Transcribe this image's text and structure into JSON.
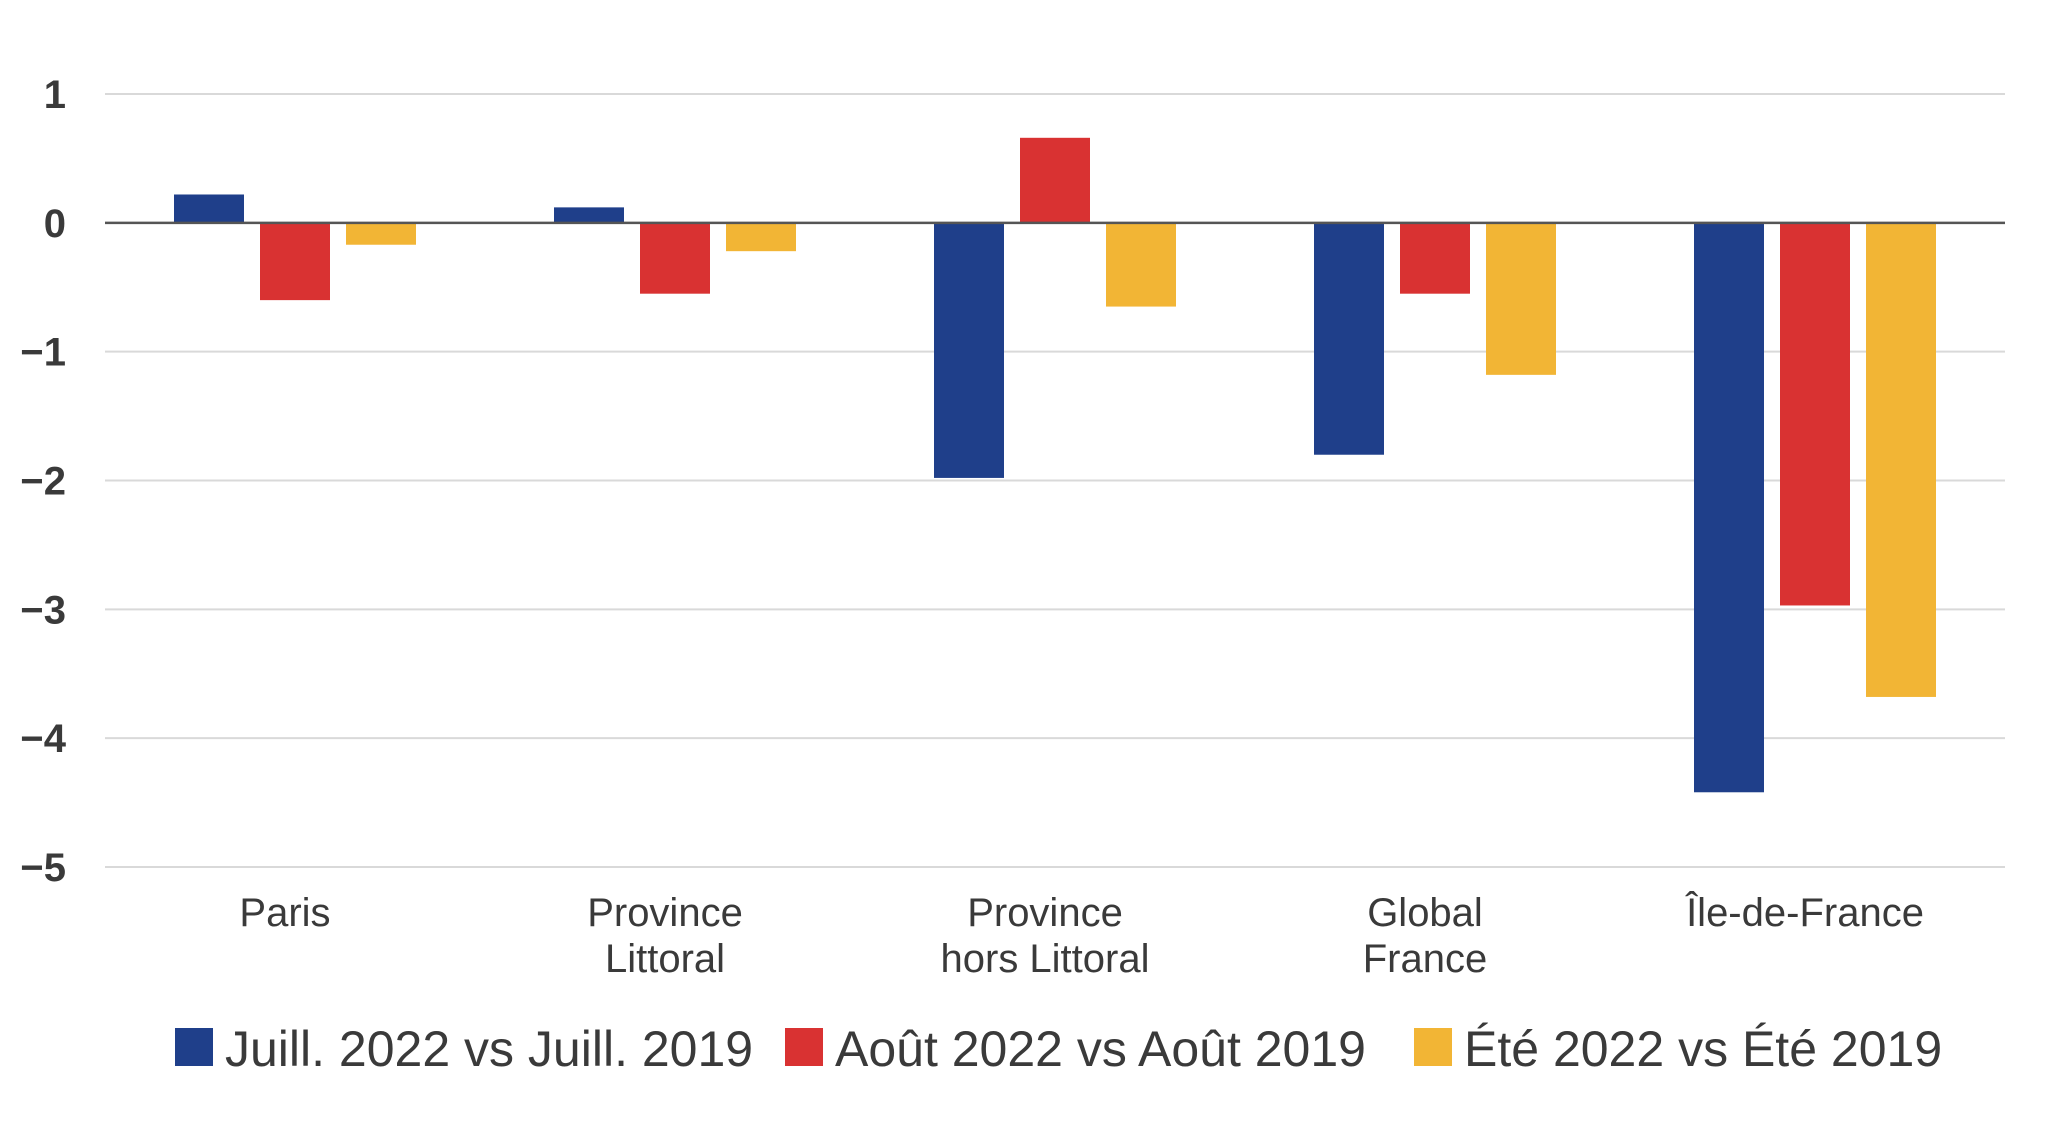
{
  "chart_data": {
    "type": "bar",
    "title": "",
    "xlabel": "",
    "ylabel": "",
    "ylim": [
      -5,
      1
    ],
    "yticks": [
      1,
      0,
      -1,
      -2,
      -3,
      -4,
      -5
    ],
    "ytick_labels": [
      "1",
      "0",
      "−1",
      "−2",
      "−3",
      "−4",
      "−5"
    ],
    "grid": true,
    "legend_position": "bottom",
    "categories": [
      [
        "Paris"
      ],
      [
        "Province",
        "Littoral"
      ],
      [
        "Province",
        "hors Littoral"
      ],
      [
        "Global",
        "France"
      ],
      [
        "Île-de-France"
      ]
    ],
    "series": [
      {
        "name": "Juill. 2022 vs Juill. 2019",
        "color": "#1f3f8a",
        "values": [
          0.22,
          0.12,
          -1.98,
          -1.8,
          -4.42
        ]
      },
      {
        "name": "Août 2022 vs Août 2019",
        "color": "#d93232",
        "values": [
          -0.6,
          -0.55,
          0.66,
          -0.55,
          -2.97
        ]
      },
      {
        "name": "Été 2022 vs Été 2019",
        "color": "#f2b535",
        "values": [
          -0.17,
          -0.22,
          -0.65,
          -1.18,
          -3.68
        ]
      }
    ]
  },
  "colors": {
    "gridline": "#d9d9d9",
    "zeroline": "#555555",
    "text": "#3a3a3a"
  }
}
